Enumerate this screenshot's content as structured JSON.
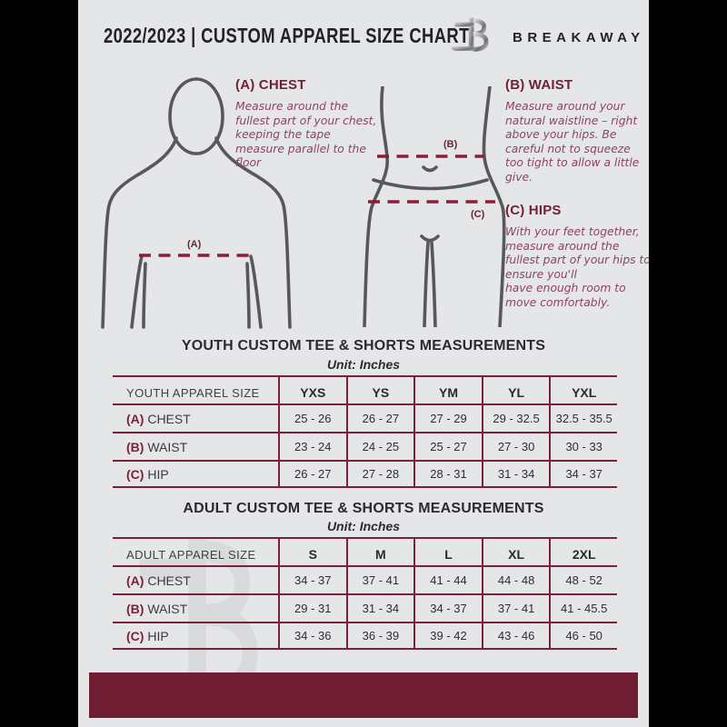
{
  "header": {
    "full_title": "2022/2023  |  CUSTOM APPAREL SIZE CHART",
    "brand": "BREAKAWAY",
    "logo": "breakaway-b-logo"
  },
  "guide": {
    "chest": {
      "label": "(A) CHEST",
      "text": "Measure around the fullest part of your chest, keeping the tape measure parallel to the floor"
    },
    "waist": {
      "label": "(B) WAIST",
      "text": "Measure around your natural waistline – right above your hips. Be careful not to squeeze too tight to allow a little give."
    },
    "hips": {
      "label": "(C) HIPS",
      "text": "With your feet together, measure around the fullest part of your hips to ensure you'll\nhave enough room to move comfortably."
    },
    "marker_a": "(A)",
    "marker_b": "(B)",
    "marker_c": "(C)"
  },
  "youth": {
    "title": "YOUTH CUSTOM TEE & SHORTS MEASUREMENTS",
    "unit": "Unit: Inches",
    "header_label": "YOUTH APPAREL SIZE",
    "sizes": [
      "YXS",
      "YS",
      "YM",
      "YL",
      "YXL"
    ],
    "rows": [
      {
        "prefix": "(A)",
        "label": "CHEST",
        "values": [
          "25 - 26",
          "26 - 27",
          "27 - 29",
          "29 - 32.5",
          "32.5 - 35.5"
        ]
      },
      {
        "prefix": "(B)",
        "label": "WAIST",
        "values": [
          "23 - 24",
          "24 - 25",
          "25 - 27",
          "27 - 30",
          "30 - 33"
        ]
      },
      {
        "prefix": "(C)",
        "label": "HIP",
        "values": [
          "26 - 27",
          "27 - 28",
          "28 - 31",
          "31 - 34",
          "34 - 37"
        ]
      }
    ]
  },
  "adult": {
    "title": "ADULT CUSTOM TEE & SHORTS MEASUREMENTS",
    "unit": "Unit: Inches",
    "header_label": "ADULT APPAREL SIZE",
    "sizes": [
      "S",
      "M",
      "L",
      "XL",
      "2XL"
    ],
    "rows": [
      {
        "prefix": "(A)",
        "label": "CHEST",
        "values": [
          "34 - 37",
          "37 - 41",
          "41 - 44",
          "44 - 48",
          "48 - 52"
        ]
      },
      {
        "prefix": "(B)",
        "label": "WAIST",
        "values": [
          "29 - 31",
          "31 - 34",
          "34 - 37",
          "37 - 41",
          "41 - 45.5"
        ]
      },
      {
        "prefix": "(C)",
        "label": "HIP",
        "values": [
          "34 - 36",
          "36 - 39",
          "39 - 42",
          "43 - 46",
          "46 - 50"
        ]
      }
    ]
  },
  "colors": {
    "pillarbox": "#000000",
    "page_bg": "#e5e6e8",
    "maroon_heading": "#70203b",
    "maroon_paragraph": "#8c4460",
    "maroon_dash": "#8b1d37",
    "maroon_table_border": "#7c2139",
    "footer_bar": "#701d33",
    "figure_stroke": "#58585b",
    "dark_text": "#232327",
    "watermark": "#d9dadc"
  }
}
